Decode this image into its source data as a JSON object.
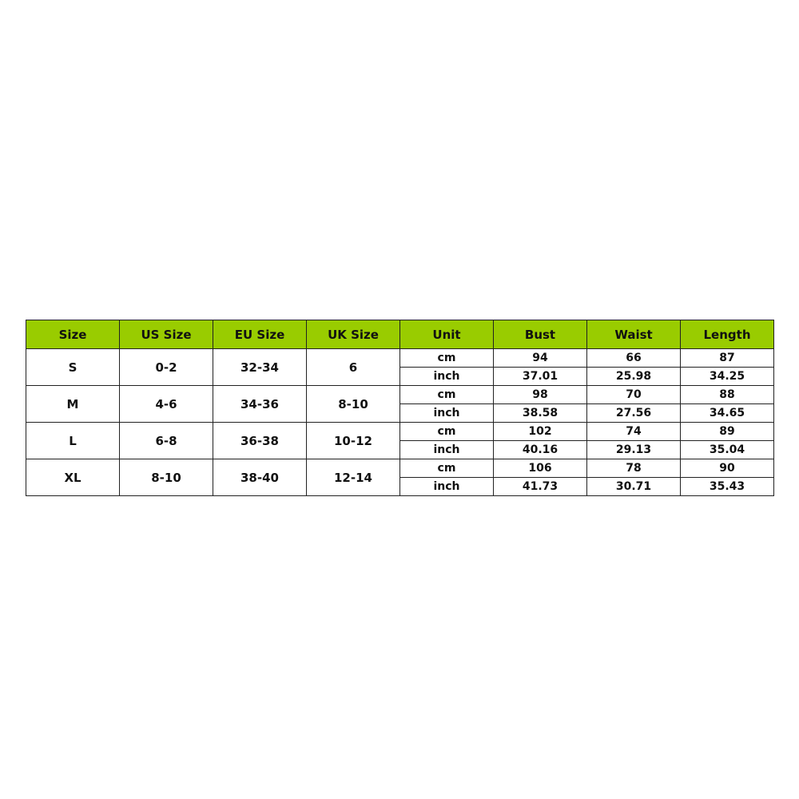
{
  "headers": [
    "Size",
    "US Size",
    "EU Size",
    "UK Size",
    "Unit",
    "Bust",
    "Waist",
    "Length"
  ],
  "header_color": "#99cc00",
  "rows": [
    {
      "size": "S",
      "us": "0-2",
      "eu": "32-34",
      "uk": "6",
      "measurements": [
        {
          "unit": "cm",
          "bust": "94",
          "waist": "66",
          "length": "87"
        },
        {
          "unit": "inch",
          "bust": "37.01",
          "waist": "25.98",
          "length": "34.25"
        }
      ]
    },
    {
      "size": "M",
      "us": "4-6",
      "eu": "34-36",
      "uk": "8-10",
      "measurements": [
        {
          "unit": "cm",
          "bust": "98",
          "waist": "70",
          "length": "88"
        },
        {
          "unit": "inch",
          "bust": "38.58",
          "waist": "27.56",
          "length": "34.65"
        }
      ]
    },
    {
      "size": "L",
      "us": "6-8",
      "eu": "36-38",
      "uk": "10-12",
      "measurements": [
        {
          "unit": "cm",
          "bust": "102",
          "waist": "74",
          "length": "89"
        },
        {
          "unit": "inch",
          "bust": "40.16",
          "waist": "29.13",
          "length": "35.04"
        }
      ]
    },
    {
      "size": "XL",
      "us": "8-10",
      "eu": "38-40",
      "uk": "12-14",
      "measurements": [
        {
          "unit": "cm",
          "bust": "106",
          "waist": "78",
          "length": "90"
        },
        {
          "unit": "inch",
          "bust": "41.73",
          "waist": "30.71",
          "length": "35.43"
        }
      ]
    }
  ]
}
